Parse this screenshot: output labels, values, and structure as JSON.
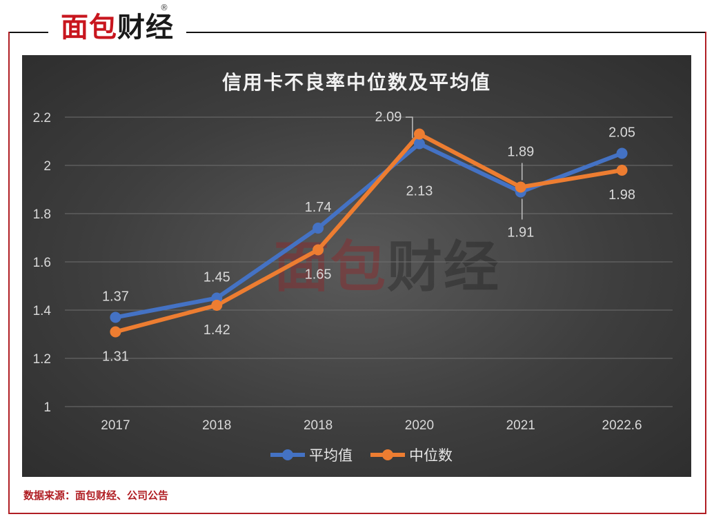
{
  "logo": {
    "part1": "面包",
    "part2": "财经",
    "reg": "®"
  },
  "source": "数据来源：面包财经、公司公告",
  "chart_data": {
    "type": "line",
    "title": "信用卡不良率中位数及平均值",
    "categories": [
      "2017",
      "2018",
      "2018",
      "2020",
      "2021",
      "2022.6"
    ],
    "ylim": [
      1,
      2.2
    ],
    "yticks": [
      "1",
      "1.2",
      "1.4",
      "1.6",
      "1.8",
      "2",
      "2.2"
    ],
    "grid": true,
    "legend_position": "bottom",
    "series": [
      {
        "name": "平均值",
        "color": "#4472C4",
        "values": [
          1.37,
          1.45,
          1.74,
          2.09,
          1.89,
          2.05
        ],
        "labels": [
          "1.37",
          "1.45",
          "1.74",
          "2.09",
          "1.89",
          "2.05"
        ]
      },
      {
        "name": "中位数",
        "color": "#ED7D31",
        "values": [
          1.31,
          1.42,
          1.65,
          2.13,
          1.91,
          1.98
        ],
        "labels": [
          "1.31",
          "1.42",
          "1.65",
          "2.13",
          "1.91",
          "1.98"
        ]
      }
    ]
  }
}
